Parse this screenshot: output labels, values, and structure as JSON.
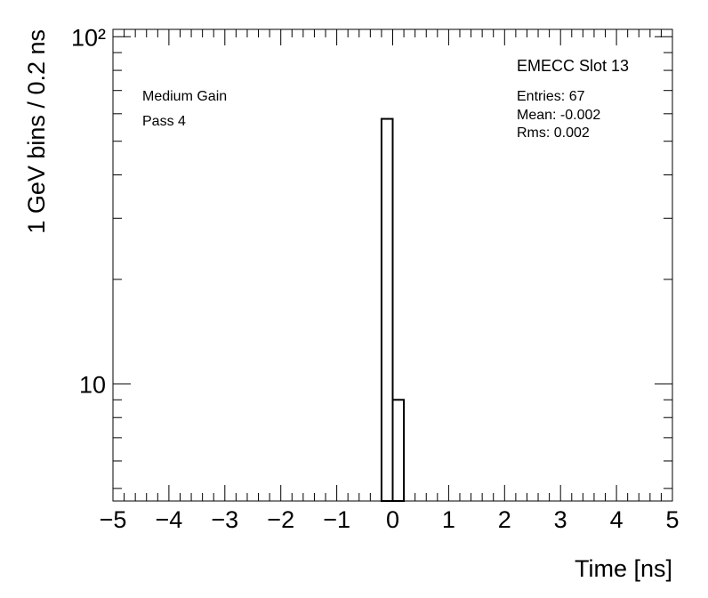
{
  "chart_data": {
    "type": "histogram",
    "log_y": true,
    "xlabel": "Time [ns]",
    "ylabel": "1 GeV bins / 0.2 ns",
    "annotations": [
      "EMECC Slot 13",
      "Entries: 67",
      "Mean: -0.002",
      "Rms: 0.002",
      "Medium Gain",
      "Pass 4"
    ],
    "bins": [
      -0.2,
      0,
      0.2
    ],
    "values": [
      58,
      9
    ],
    "color": "#000000",
    "xlim": [
      -5,
      5
    ],
    "xticks": [
      {
        "value": -5,
        "label": "−5"
      },
      {
        "value": -4,
        "label": "−4"
      },
      {
        "value": -3,
        "label": "−3"
      },
      {
        "value": -2,
        "label": "−2"
      },
      {
        "value": -1,
        "label": "−1"
      },
      0,
      1,
      2,
      3,
      4,
      5
    ],
    "ylim": [
      4.6,
      105
    ],
    "yticks": [
      10,
      {
        "value": 100,
        "label": "10²"
      }
    ]
  }
}
